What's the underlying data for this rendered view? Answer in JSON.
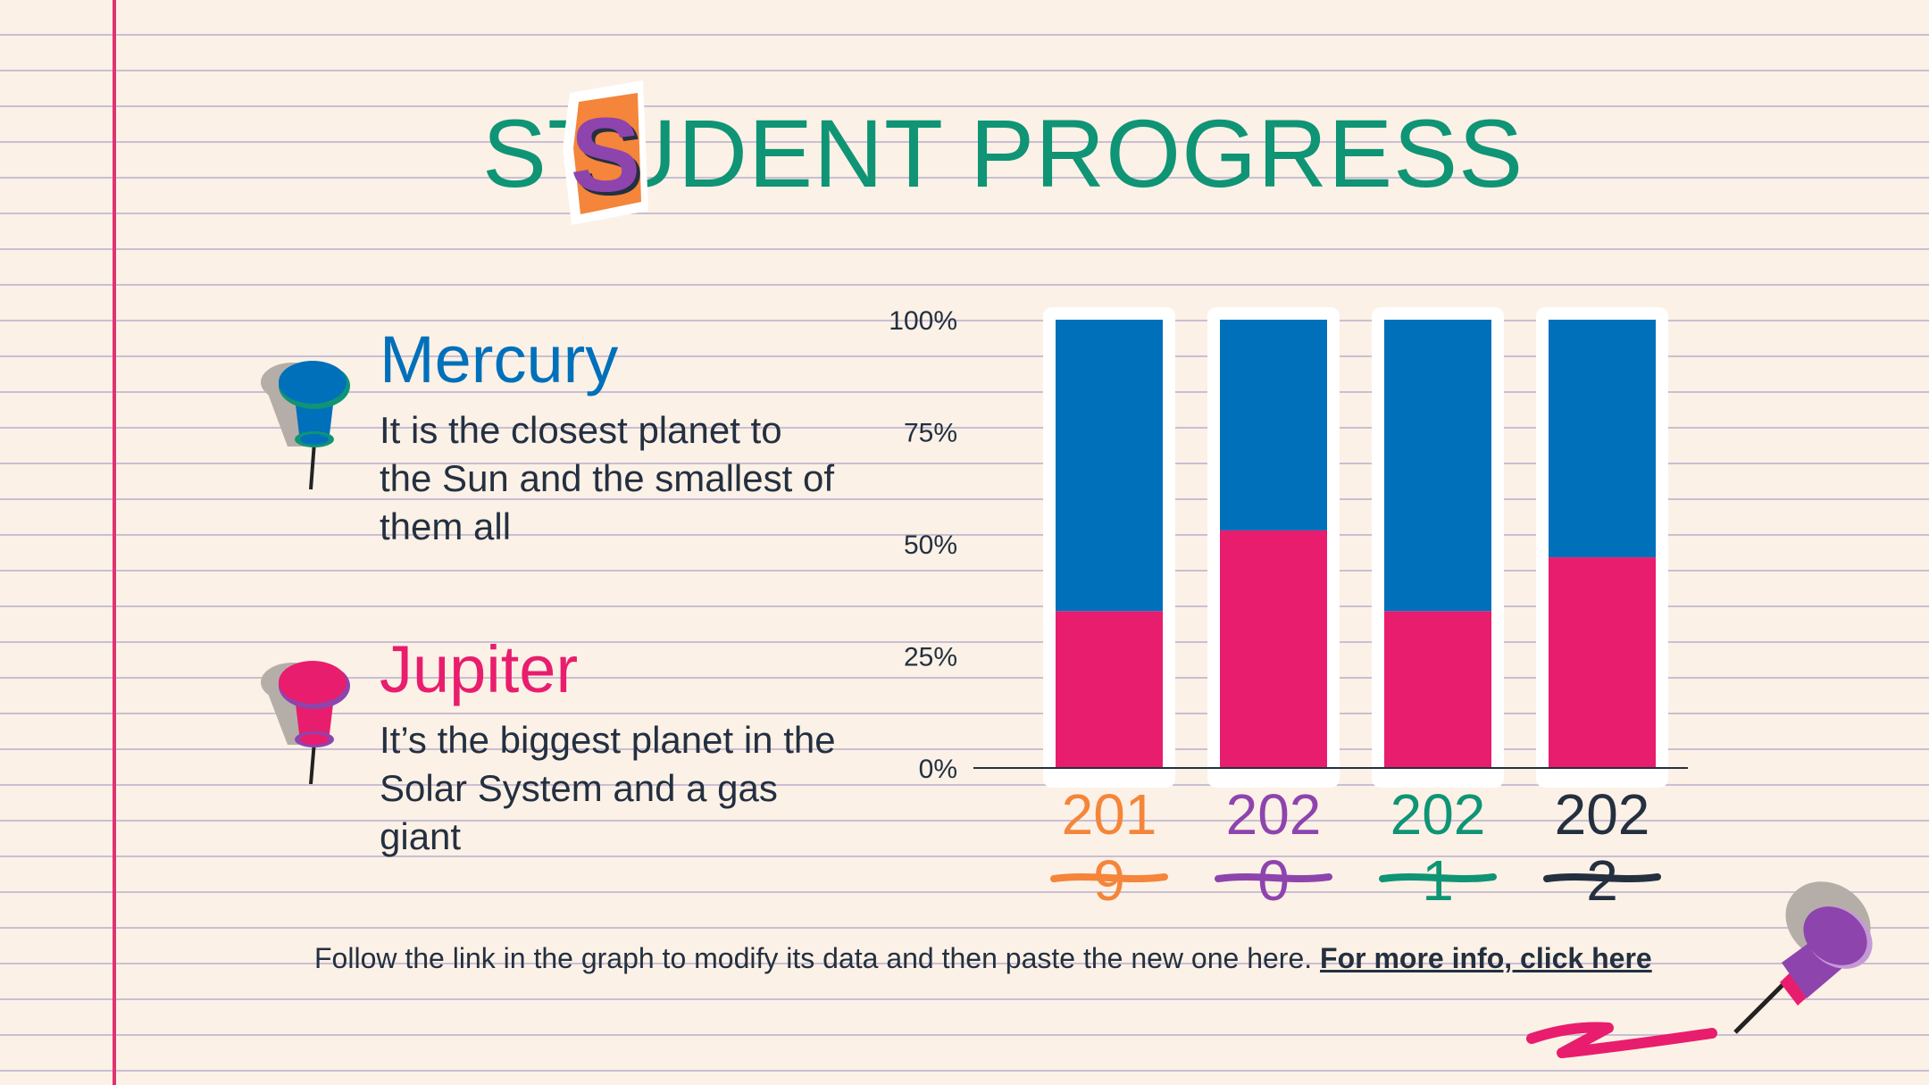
{
  "title": {
    "prefix": "S",
    "sticker_letter": "T",
    "rest": "UDENT PROGRESS",
    "color": "#0f9475"
  },
  "items": [
    {
      "heading": "Mercury",
      "description": "It is the closest planet to the Sun and the smallest of them all",
      "color": "#0070bb",
      "icon": "pushpin-blue-icon"
    },
    {
      "heading": "Jupiter",
      "description": "It’s the biggest planet in the Solar System and a gas giant",
      "color": "#e91d6d",
      "icon": "pushpin-pink-icon"
    }
  ],
  "chart_data": {
    "type": "bar",
    "stacked": true,
    "percent": true,
    "categories": [
      "2019",
      "2020",
      "2021",
      "2022"
    ],
    "category_colors": [
      "#f4853a",
      "#8e44ad",
      "#0f9475",
      "#243040"
    ],
    "series": [
      {
        "values": [
          35,
          53,
          35,
          47
        ],
        "color": "#e91d6d"
      },
      {
        "values": [
          65,
          47,
          65,
          53
        ],
        "color": "#0070bb"
      }
    ],
    "ylim": [
      0,
      100
    ],
    "yticks": [
      "0%",
      "25%",
      "50%",
      "75%",
      "100%"
    ],
    "xlabel": "",
    "ylabel": ""
  },
  "footer": {
    "text": "Follow the link in the graph to modify its data and then paste the new one here. ",
    "link": "For more info, click here"
  },
  "decor": {
    "sticker_icon": "cutout-letter-s-sticker",
    "corner_icon": "pushpin-purple-icon",
    "squiggle_icon": "pink-squiggle-doodle"
  }
}
